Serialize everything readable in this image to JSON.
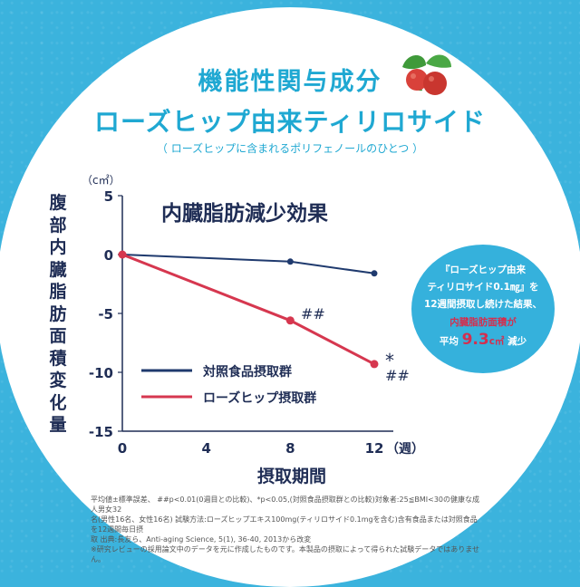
{
  "header": {
    "title1": "機能性関与成分",
    "title2": "ローズヒップ由来ティリロサイド",
    "subtitle": "（ ローズヒップに含まれるポリフェノールのひとつ ）"
  },
  "colors": {
    "accent": "#1fa8d2",
    "background": "#3bb3dd",
    "control": "#1f3a6e",
    "rosehip": "#d6374f"
  },
  "chart_data": {
    "type": "line",
    "title": "内臓脂肪減少効果",
    "ylabel": "腹部内臓脂肪面積変化量",
    "yunit": "（c㎡）",
    "xlabel": "摂取期間",
    "xunit": "（週）",
    "x": [
      0,
      4,
      8,
      12
    ],
    "xticks": [
      "0",
      "4",
      "8",
      "12"
    ],
    "ylim": [
      -15,
      5
    ],
    "yticks": [
      "5",
      "0",
      "-5",
      "-10",
      "-15"
    ],
    "series": [
      {
        "name": "対照食品摂取群",
        "x": [
          0,
          8,
          12
        ],
        "values": [
          0,
          -0.6,
          -1.6
        ]
      },
      {
        "name": "ローズヒップ摂取群",
        "x": [
          0,
          8,
          12
        ],
        "values": [
          0,
          -5.6,
          -9.3
        ]
      }
    ],
    "annotations": {
      "week8": "##",
      "week12_star": "*",
      "week12_hash": "##"
    },
    "legend_position": "lower-left"
  },
  "callout": {
    "line1": "『ローズヒップ由来",
    "line2": "ティリロサイド0.1㎎』を",
    "line3": "12週間摂取し続けた結果、",
    "line4": "内臓脂肪面積が",
    "line5_pre": "平均",
    "value": "9.3",
    "unit": "c㎡",
    "line5_post": "減少"
  },
  "footnote": {
    "line1": "平均値±標準誤差、 ##p<0.01(0週目との比較)、*p<0.05,(対照食品摂取群との比較)対象者:25≦BMI<30の健康な成人男女32",
    "line2": "名(男性16名、女性16名) 試験方法:ローズヒップエキス100mg(ティリロサイド0.1mgを含む)含有食品または対照食品を12週間毎日摂",
    "line3": "取 出典:長友ら、Anti-aging Science, 5(1), 36-40, 2013から改変",
    "line4": "※研究レビューの採用論文中のデータを元に作成したものです。本製品の摂取によって得られた試験データではありません。"
  }
}
